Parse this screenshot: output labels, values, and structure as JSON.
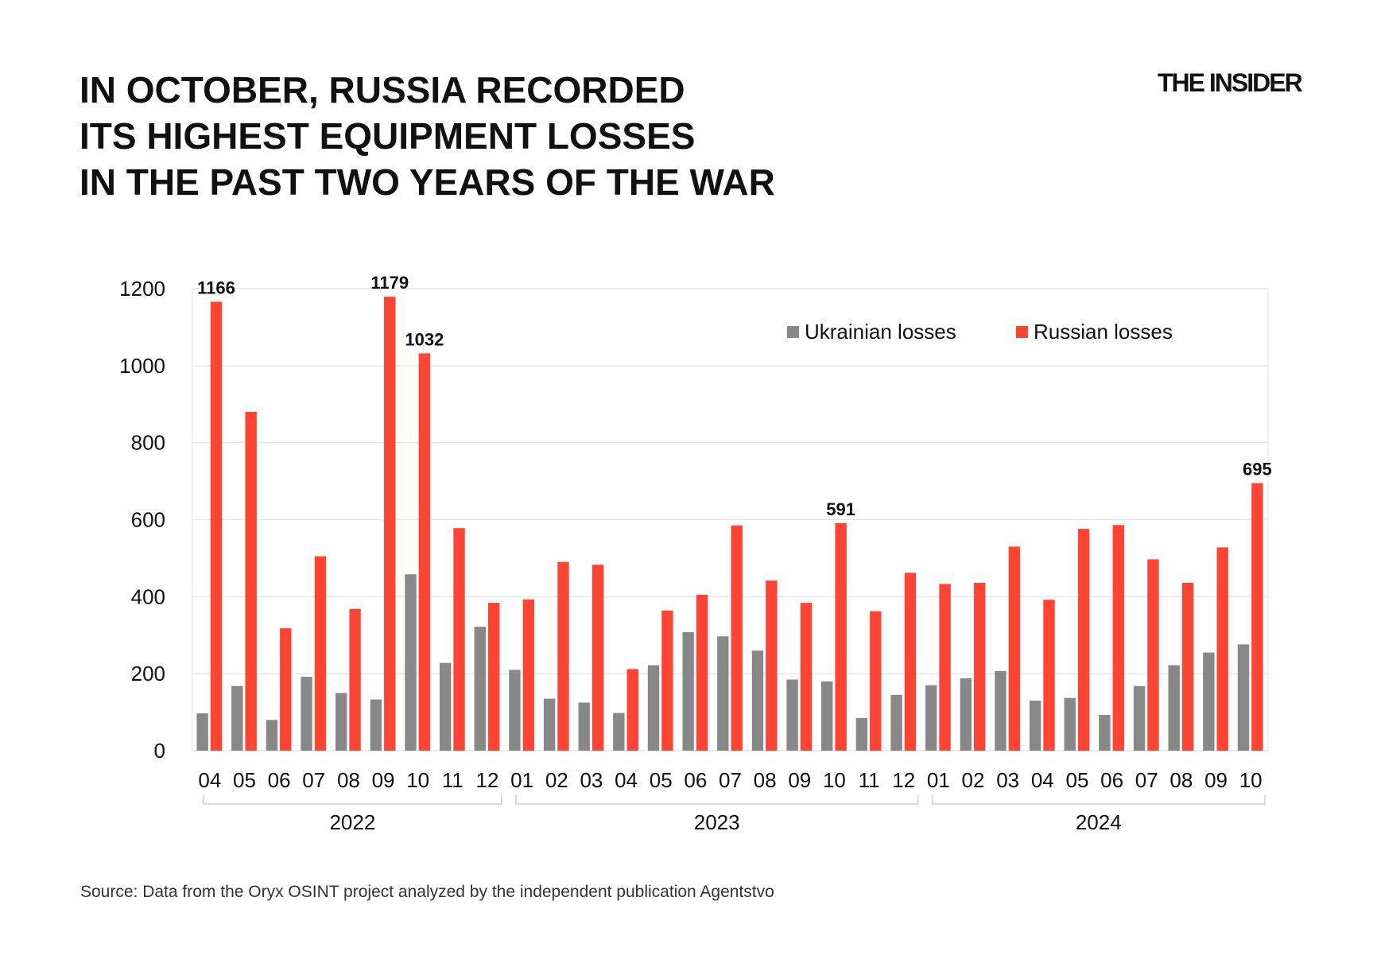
{
  "title_lines": [
    "IN OCTOBER, RUSSIA RECORDED",
    "ITS HIGHEST EQUIPMENT LOSSES",
    "IN THE PAST TWO YEARS OF THE WAR"
  ],
  "logo": "THE INSIDER",
  "source": "Source: Data from the Oryx OSINT project analyzed by the independent publication Agentstvo",
  "chart_data": {
    "type": "bar",
    "ylim": [
      0,
      1200
    ],
    "yticks": [
      0,
      200,
      400,
      600,
      800,
      1000,
      1200
    ],
    "grid": true,
    "legend_placement": "top-right",
    "categories": [
      "04",
      "05",
      "06",
      "07",
      "08",
      "09",
      "10",
      "11",
      "12",
      "01",
      "02",
      "03",
      "04",
      "05",
      "06",
      "07",
      "08",
      "09",
      "10",
      "11",
      "12",
      "01",
      "02",
      "03",
      "04",
      "05",
      "06",
      "07",
      "08",
      "09",
      "10"
    ],
    "year_groups": [
      {
        "label": "2022",
        "start": 0,
        "end": 8
      },
      {
        "label": "2023",
        "start": 9,
        "end": 20
      },
      {
        "label": "2024",
        "start": 21,
        "end": 30
      }
    ],
    "series": [
      {
        "name": "Ukrainian losses",
        "color": "#888888",
        "values": [
          97,
          168,
          80,
          192,
          150,
          133,
          458,
          228,
          322,
          210,
          135,
          125,
          98,
          222,
          308,
          297,
          260,
          185,
          180,
          85,
          145,
          170,
          188,
          207,
          130,
          137,
          93,
          168,
          222,
          255,
          276
        ]
      },
      {
        "name": "Russian losses",
        "color": "#ff4433",
        "values": [
          1166,
          880,
          318,
          505,
          368,
          1179,
          1032,
          578,
          384,
          393,
          490,
          483,
          212,
          364,
          405,
          585,
          442,
          384,
          591,
          362,
          462,
          433,
          436,
          530,
          392,
          576,
          586,
          497,
          436,
          528,
          695
        ]
      }
    ],
    "data_labels": [
      {
        "index": 0,
        "series": 1,
        "text": "1166"
      },
      {
        "index": 5,
        "series": 1,
        "text": "1179"
      },
      {
        "index": 6,
        "series": 1,
        "text": "1032"
      },
      {
        "index": 18,
        "series": 1,
        "text": "591"
      },
      {
        "index": 30,
        "series": 1,
        "text": "695"
      }
    ]
  }
}
